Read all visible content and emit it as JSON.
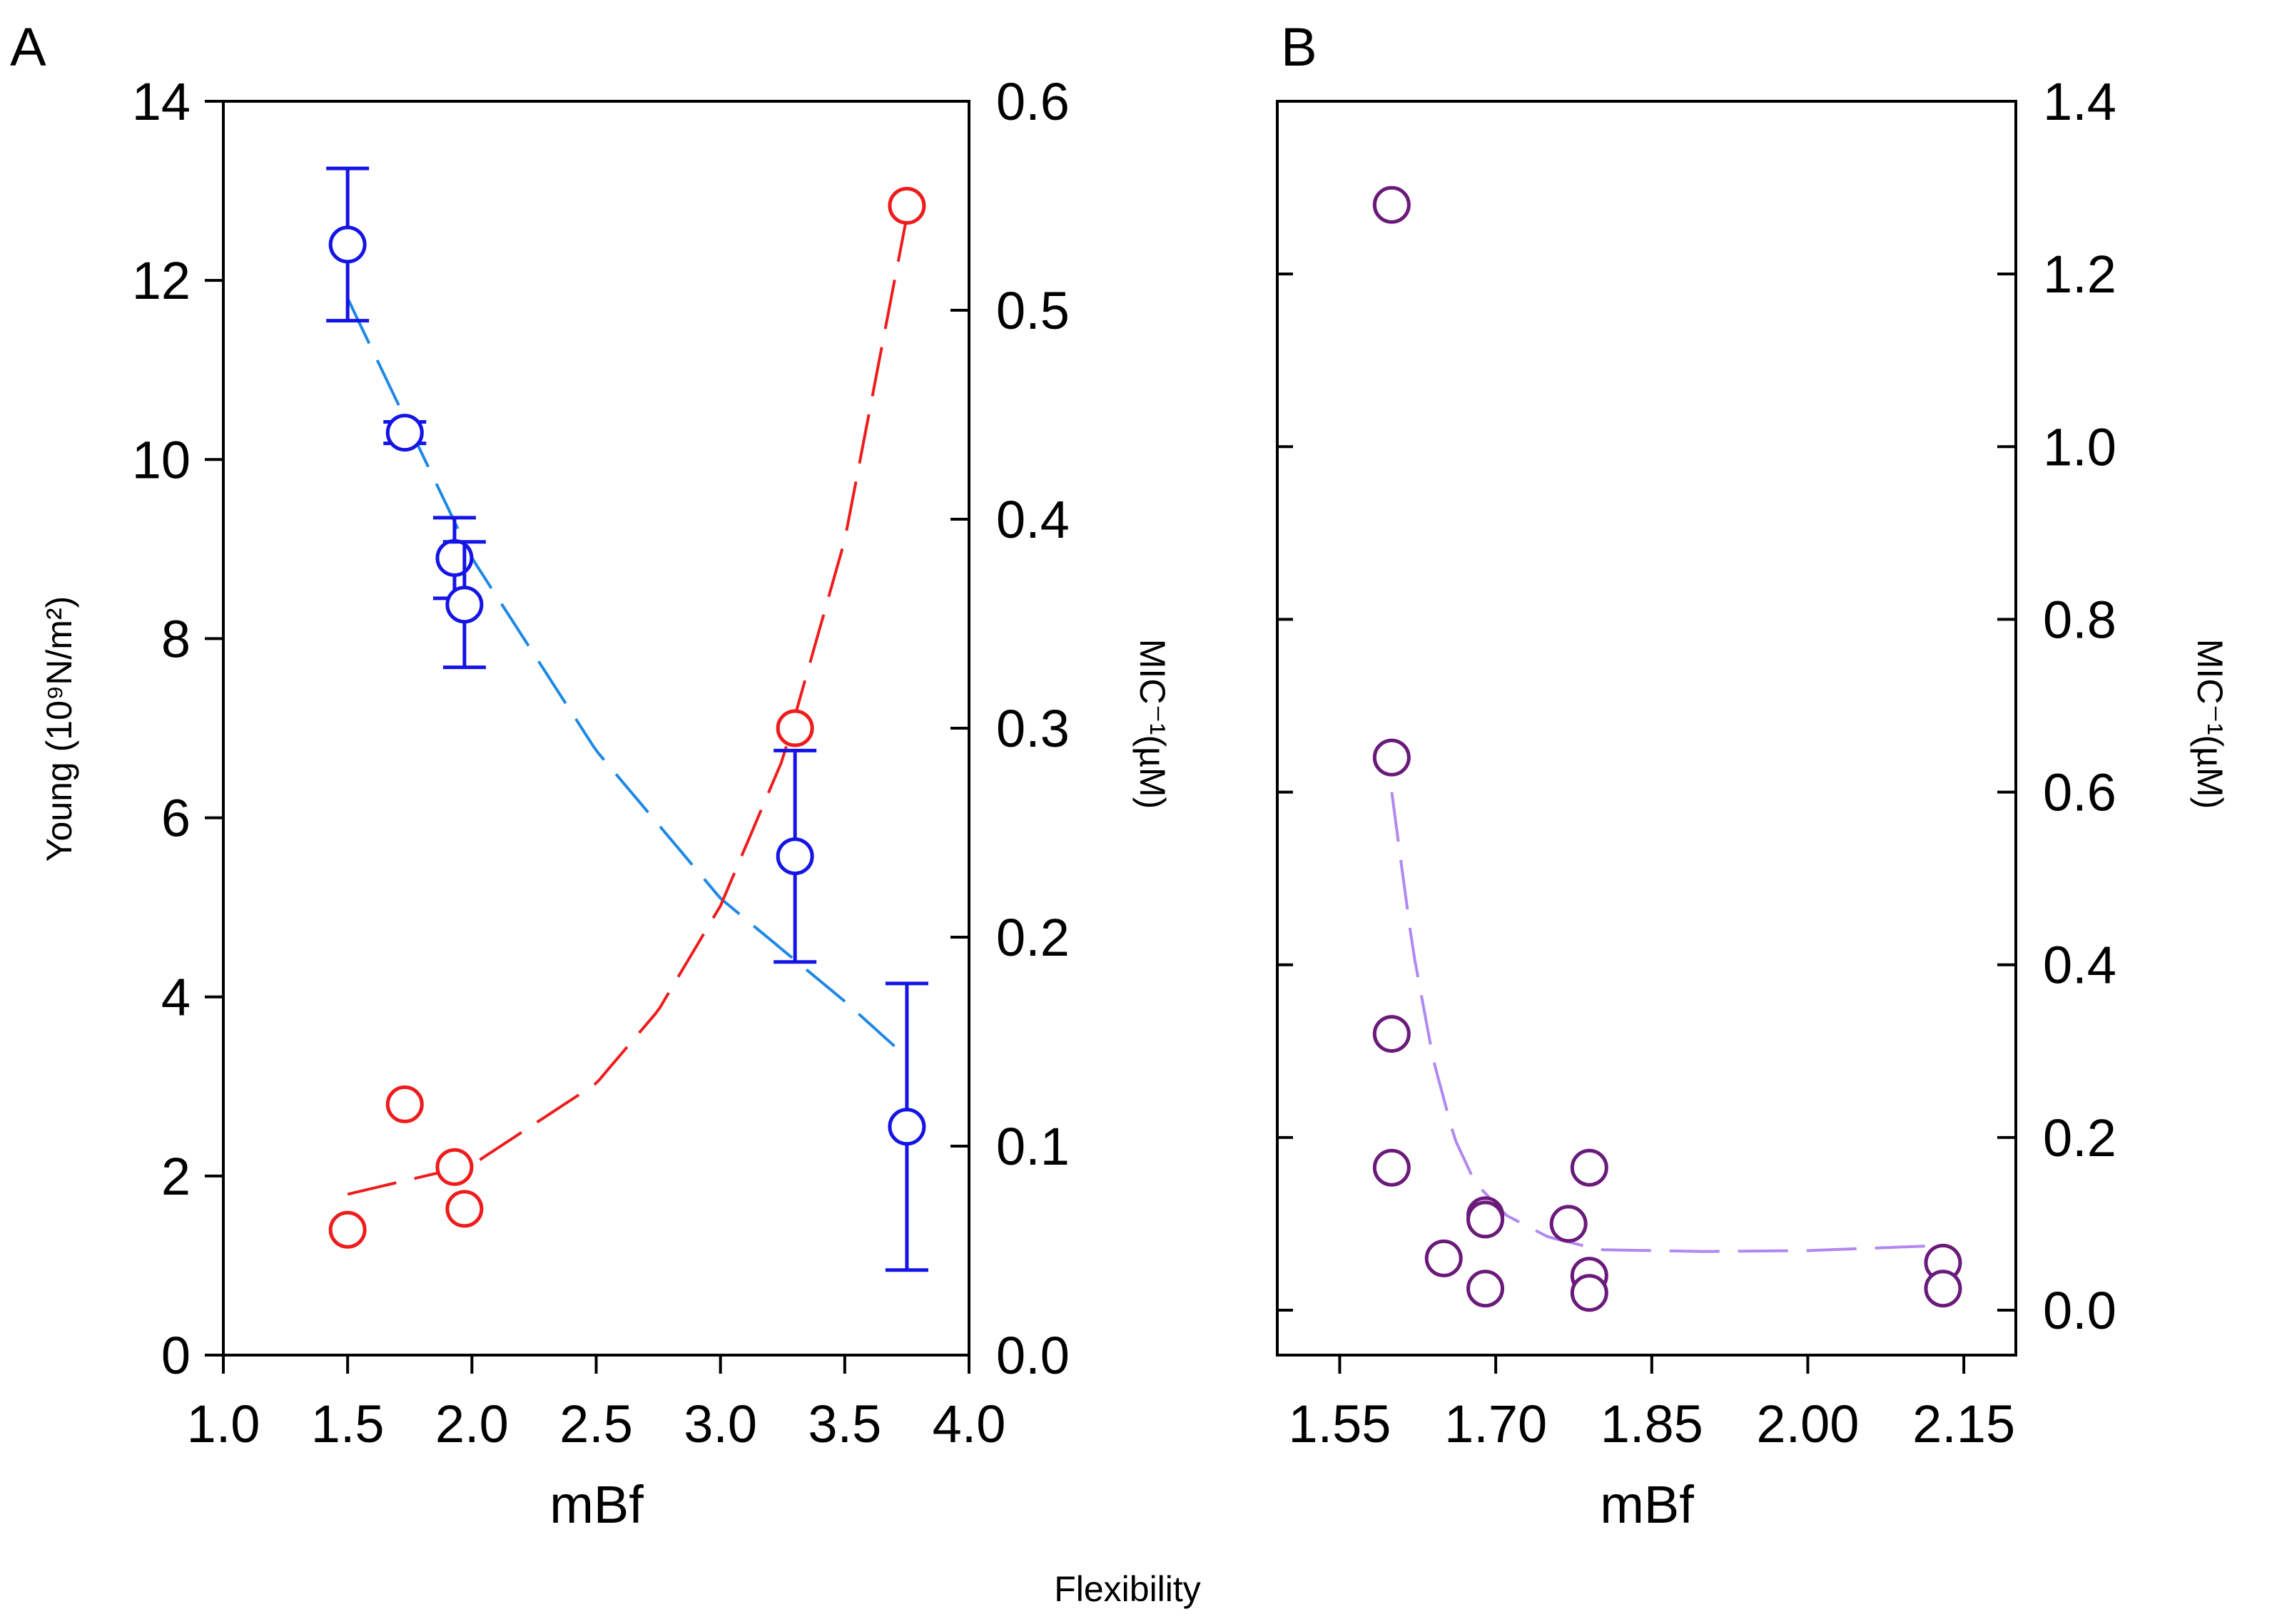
{
  "flexibility_label": "Flexibility",
  "colors": {
    "young_a": "#1414e6",
    "young_fit_a": "#1e88e5",
    "mic_a": "#ee1c1c",
    "mic_b": "#6a1a7a",
    "mic_fit_b": "#b088f0"
  },
  "chart_data": [
    {
      "type": "scatter",
      "panel_label": "A",
      "xlabel": "mBf",
      "ylabel": "Young (10⁹N/m²)",
      "y2label": "MIC⁻¹(µM)",
      "xlim": [
        1.0,
        4.0
      ],
      "ylim": [
        0,
        14
      ],
      "y2lim": [
        0.0,
        0.6
      ],
      "x_ticks": [
        "1.0",
        "1.5",
        "2.0",
        "2.5",
        "3.0",
        "3.5",
        "4.0"
      ],
      "y_ticks": [
        "0",
        "2",
        "4",
        "6",
        "8",
        "10",
        "12",
        "14"
      ],
      "y2_ticks": [
        "0.0",
        "0.1",
        "0.2",
        "0.3",
        "0.4",
        "0.5",
        "0.6"
      ],
      "grid": false,
      "series": [
        {
          "axis": "left",
          "x": [
            1.5,
            1.73,
            1.93,
            1.97,
            3.3,
            3.75
          ],
          "y": [
            12.4,
            10.3,
            8.9,
            8.38,
            5.57,
            2.55
          ],
          "yerr": [
            0.85,
            0.12,
            0.45,
            0.7,
            1.18,
            1.6
          ]
        },
        {
          "axis": "right",
          "x": [
            1.5,
            1.73,
            1.93,
            1.97,
            3.3,
            3.75
          ],
          "y": [
            0.06,
            0.12,
            0.09,
            0.07,
            0.3,
            0.55
          ]
        }
      ],
      "fits": [
        {
          "axis": "left",
          "x_range": [
            1.5,
            3.7
          ],
          "points": [
            [
              1.5,
              11.8
            ],
            [
              2.0,
              8.9
            ],
            [
              2.5,
              6.75
            ],
            [
              3.0,
              5.1
            ],
            [
              3.5,
              3.95
            ],
            [
              3.7,
              3.45
            ]
          ]
        },
        {
          "axis": "right",
          "x_range": [
            1.5,
            3.75
          ],
          "points": [
            [
              1.5,
              0.077
            ],
            [
              2.0,
              0.091
            ],
            [
              2.5,
              0.13
            ],
            [
              2.75,
              0.165
            ],
            [
              3.0,
              0.215
            ],
            [
              3.25,
              0.285
            ],
            [
              3.5,
              0.39
            ],
            [
              3.75,
              0.545
            ]
          ]
        }
      ]
    },
    {
      "type": "scatter",
      "panel_label": "B",
      "xlabel": "mBf",
      "y2label": "MIC⁻¹(µM)",
      "xlim": [
        1.49,
        2.2
      ],
      "y2lim": [
        0.0,
        1.4
      ],
      "x_ticks": [
        "1.55",
        "1.70",
        "1.85",
        "2.00",
        "2.15"
      ],
      "y2_ticks": [
        "0.0",
        "0.2",
        "0.4",
        "0.6",
        "0.8",
        "1.0",
        "1.2",
        "1.4"
      ],
      "grid": false,
      "series": [
        {
          "axis": "right",
          "x": [
            1.6,
            1.6,
            1.6,
            1.6,
            1.65,
            1.69,
            1.69,
            1.69,
            1.77,
            1.79,
            1.79,
            1.79,
            2.13,
            2.13
          ],
          "y": [
            1.28,
            0.64,
            0.32,
            0.165,
            0.06,
            0.11,
            0.105,
            0.025,
            0.1,
            0.165,
            0.04,
            0.02,
            0.055,
            0.025
          ]
        }
      ],
      "fits": [
        {
          "axis": "right",
          "x_range": [
            1.6,
            2.13
          ],
          "points": [
            [
              1.6,
              0.6
            ],
            [
              1.62,
              0.42
            ],
            [
              1.64,
              0.29
            ],
            [
              1.66,
              0.2
            ],
            [
              1.68,
              0.148
            ],
            [
              1.71,
              0.11
            ],
            [
              1.75,
              0.085
            ],
            [
              1.8,
              0.07
            ],
            [
              1.9,
              0.068
            ],
            [
              2.0,
              0.069
            ],
            [
              2.13,
              0.075
            ]
          ]
        }
      ]
    }
  ]
}
